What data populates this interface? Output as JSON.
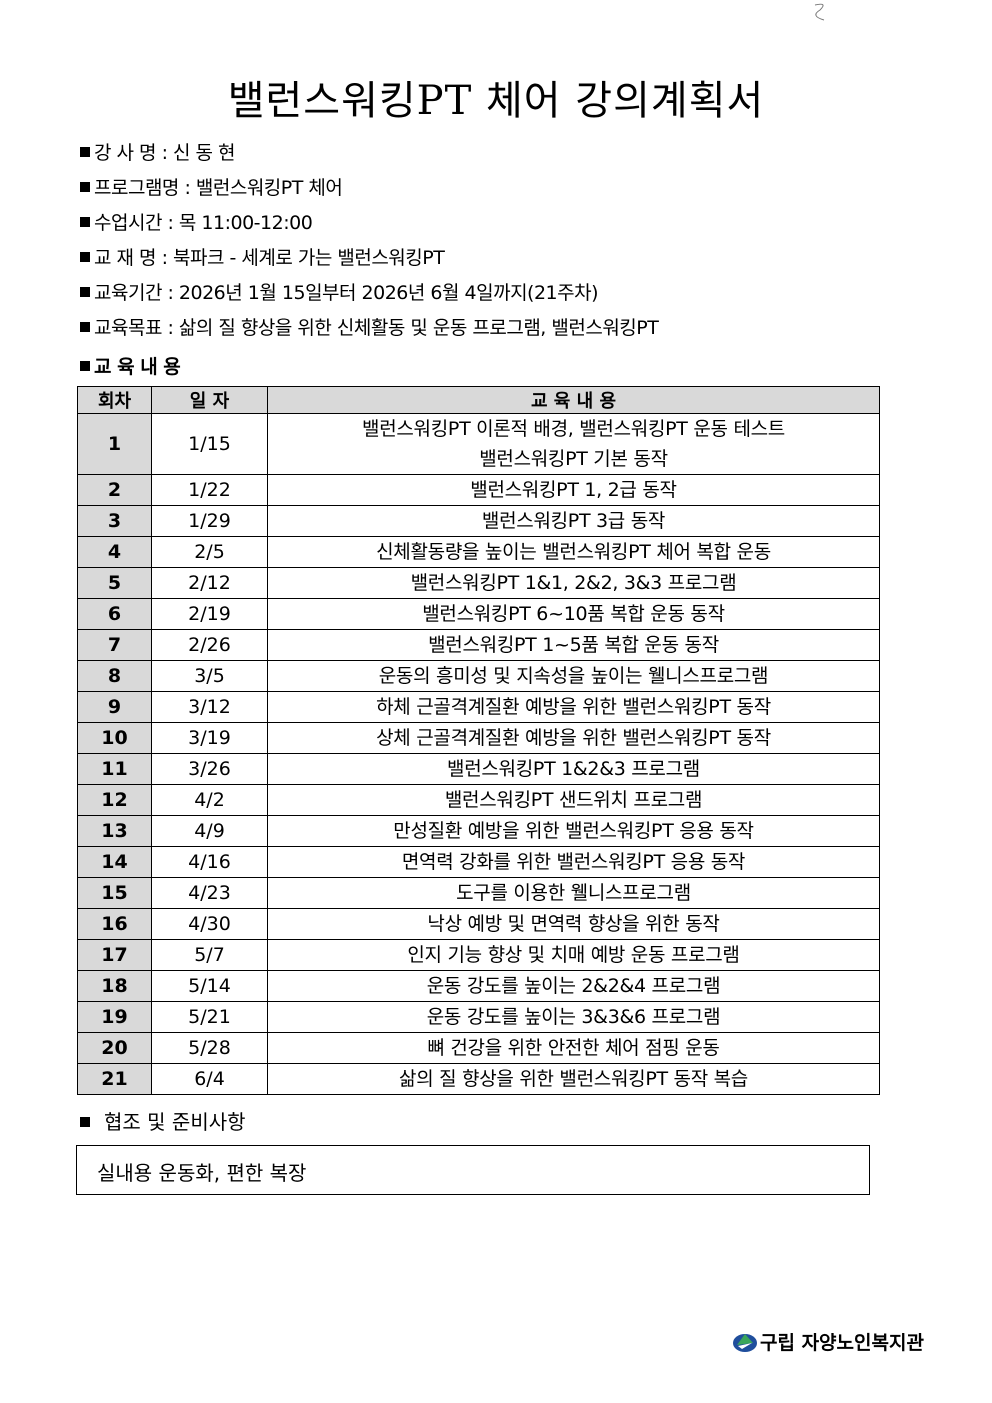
{
  "title": "밸런스워킹PT 체어 강의계획서",
  "info": [
    {
      "label": "강 사 명",
      "value": "신 동 현"
    },
    {
      "label": "프로그램명",
      "value": "밸런스워킹PT 체어"
    },
    {
      "label": "수업시간",
      "value": "목 11:00-12:00"
    },
    {
      "label": "교 재 명",
      "value": "북파크 - 세계로 가는 밸런스워킹PT"
    },
    {
      "label": "교육기간",
      "value": "2026년 1월 15일부터 2026년 6월 4일까지(21주차)"
    },
    {
      "label": "교육목표",
      "value": "삶의 질 향상을 위한 신체활동 및 운동 프로그램, 밸런스워킹PT"
    }
  ],
  "content_heading": "교 육 내 용",
  "table": {
    "headers": [
      "회차",
      "일 자",
      "교 육 내 용"
    ],
    "rows": [
      {
        "num": "1",
        "date": "1/15",
        "content": "밸런스워킹PT 이론적 배경, 밸런스워킹PT 운동 테스트",
        "content2": "밸런스워킹PT 기본 동작"
      },
      {
        "num": "2",
        "date": "1/22",
        "content": "밸런스워킹PT 1, 2급 동작"
      },
      {
        "num": "3",
        "date": "1/29",
        "content": "밸런스워킹PT 3급 동작"
      },
      {
        "num": "4",
        "date": "2/5",
        "content": "신체활동량을 높이는 밸런스워킹PT 체어 복합 운동"
      },
      {
        "num": "5",
        "date": "2/12",
        "content": "밸런스워킹PT 1&1, 2&2, 3&3 프로그램"
      },
      {
        "num": "6",
        "date": "2/19",
        "content": "밸런스워킹PT 6~10품 복합 운동 동작"
      },
      {
        "num": "7",
        "date": "2/26",
        "content": "밸런스워킹PT 1~5품 복합 운동 동작"
      },
      {
        "num": "8",
        "date": "3/5",
        "content": "운동의 흥미성 및 지속성을 높이는 웰니스프로그램"
      },
      {
        "num": "9",
        "date": "3/12",
        "content": "하체 근골격계질환 예방을 위한 밸런스워킹PT 동작"
      },
      {
        "num": "10",
        "date": "3/19",
        "content": "상체 근골격계질환 예방을 위한 밸런스워킹PT 동작"
      },
      {
        "num": "11",
        "date": "3/26",
        "content": "밸런스워킹PT 1&2&3 프로그램"
      },
      {
        "num": "12",
        "date": "4/2",
        "content": "밸런스워킹PT 샌드위치 프로그램"
      },
      {
        "num": "13",
        "date": "4/9",
        "content": "만성질환 예방을 위한 밸런스워킹PT 응용 동작"
      },
      {
        "num": "14",
        "date": "4/16",
        "content": "면역력 강화를 위한 밸런스워킹PT 응용 동작"
      },
      {
        "num": "15",
        "date": "4/23",
        "content": "도구를 이용한 웰니스프로그램"
      },
      {
        "num": "16",
        "date": "4/30",
        "content": "낙상 예방 및 면역력 향상을 위한 동작"
      },
      {
        "num": "17",
        "date": "5/7",
        "content": "인지 기능 향상 및 치매 예방 운동 프로그램"
      },
      {
        "num": "18",
        "date": "5/14",
        "content": "운동 강도를 높이는 2&2&4 프로그램"
      },
      {
        "num": "19",
        "date": "5/21",
        "content": "운동 강도를 높이는 3&3&6 프로그램"
      },
      {
        "num": "20",
        "date": "5/28",
        "content": "뼈 건강을 위한 안전한 체어 점핑 운동"
      },
      {
        "num": "21",
        "date": "6/4",
        "content": "삶의 질 향상을 위한 밸런스워킹PT 동작 복습"
      }
    ]
  },
  "preparation": {
    "heading": "협조 및 준비사항",
    "text": "실내용 운동화, 편한 복장"
  },
  "logo": {
    "text": "구립 자양노인복지관",
    "icon": "welfare-center-logo-icon"
  }
}
